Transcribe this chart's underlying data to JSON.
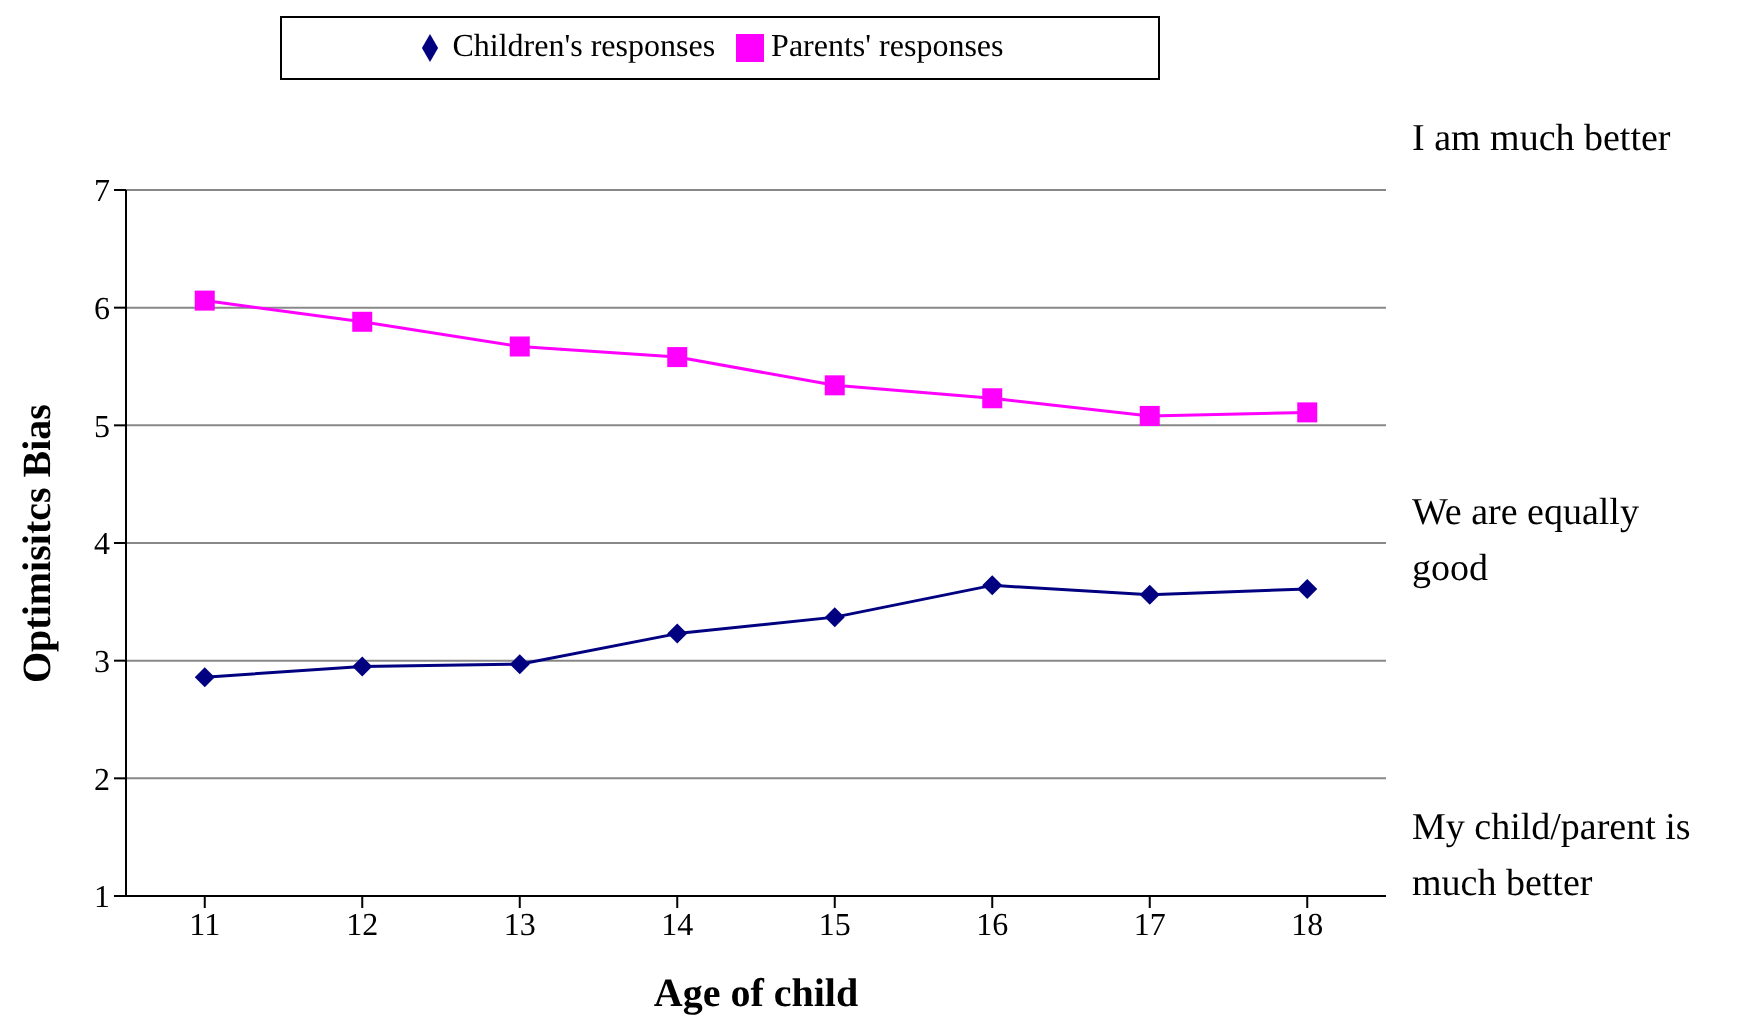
{
  "chart_data": {
    "type": "line",
    "xlabel": "Age of child",
    "ylabel": "Optimisitcs Bias",
    "categories": [
      "11",
      "12",
      "13",
      "14",
      "15",
      "16",
      "17",
      "18"
    ],
    "series": [
      {
        "name": "Children's responses",
        "color": "#000080",
        "marker": "diamond",
        "values": [
          2.86,
          2.95,
          2.97,
          3.23,
          3.37,
          3.64,
          3.56,
          3.61
        ]
      },
      {
        "name": "Parents' responses",
        "color": "#ff00ff",
        "marker": "square",
        "values": [
          6.06,
          5.88,
          5.67,
          5.58,
          5.34,
          5.23,
          5.08,
          5.11
        ]
      }
    ],
    "ylim": [
      1,
      7
    ],
    "yticks": [
      1,
      2,
      3,
      4,
      5,
      6,
      7
    ],
    "grid": "y",
    "legend": "top",
    "annotations": [
      "I am much better",
      "We are equally good",
      "My child/parent is much better"
    ]
  }
}
